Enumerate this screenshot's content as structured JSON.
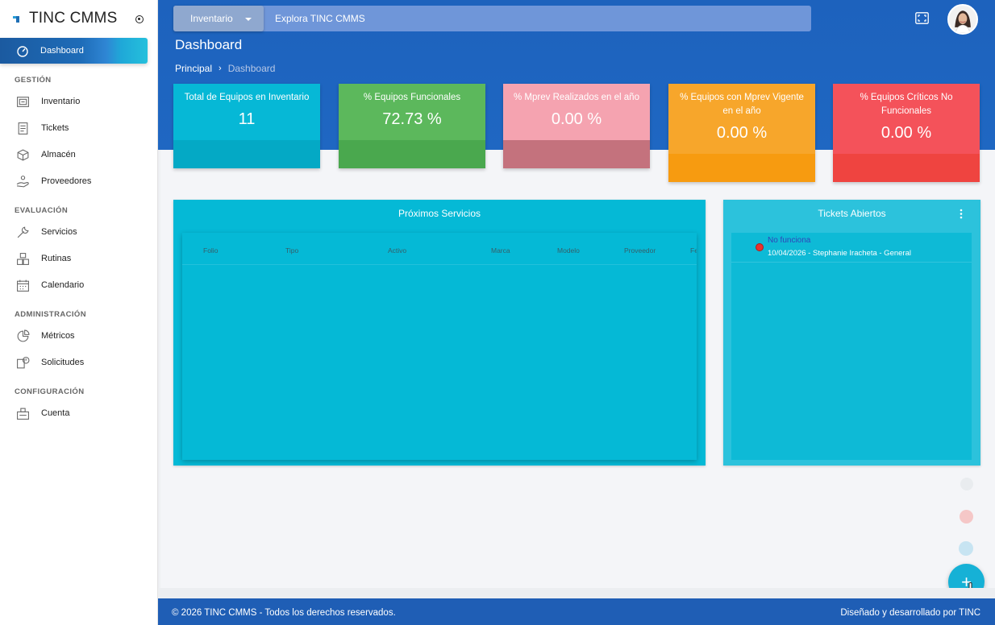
{
  "app": {
    "title": "TINC CMMS"
  },
  "sidebar": {
    "active": {
      "label": "Dashboard"
    },
    "sections": [
      {
        "label": "GESTIÓN",
        "items": [
          {
            "label": "Inventario",
            "icon": "inventory-icon"
          },
          {
            "label": "Tickets",
            "icon": "tickets-icon"
          },
          {
            "label": "Almacén",
            "icon": "box-icon"
          },
          {
            "label": "Proveedores",
            "icon": "supplier-icon"
          }
        ]
      },
      {
        "label": "EVALUACIÓN",
        "items": [
          {
            "label": "Servicios",
            "icon": "wrench-icon"
          },
          {
            "label": "Rutinas",
            "icon": "boxes-icon"
          },
          {
            "label": "Calendario",
            "icon": "calendar-icon"
          }
        ]
      },
      {
        "label": "ADMINISTRACIÓN",
        "items": [
          {
            "label": "Métricos",
            "icon": "pie-chart-icon"
          },
          {
            "label": "Solicitudes",
            "icon": "request-icon"
          }
        ]
      },
      {
        "label": "CONFIGURACIÓN",
        "items": [
          {
            "label": "Cuenta",
            "icon": "account-icon"
          }
        ]
      }
    ]
  },
  "header": {
    "search_select": "Inventario",
    "search_placeholder": "Explora TINC CMMS"
  },
  "page": {
    "title": "Dashboard",
    "breadcrumb": {
      "root": "Principal",
      "current": "Dashboard"
    }
  },
  "cards": [
    {
      "label": "Total de Equipos en Inventario",
      "value": "11",
      "color_top": "#06b8d6",
      "color_bottom": "#04a9c5"
    },
    {
      "label": "% Equipos Funcionales",
      "value": "72.73 %",
      "color_top": "#5cb85c",
      "color_bottom": "#4aa84e"
    },
    {
      "label": "% Mprev Realizados en el año",
      "value": "0.00 %",
      "color_top": "#f5a3b0",
      "color_bottom": "#c4727d"
    },
    {
      "label": "% Equipos con Mprev Vigente en el año",
      "value": "0.00 %",
      "color_top": "#f7a62b",
      "color_bottom": "#f79b10"
    },
    {
      "label": "% Equipos Críticos No Funcionales",
      "value": "0.00 %",
      "color_top": "#f4525a",
      "color_bottom": "#ef4440"
    }
  ],
  "services": {
    "title": "Próximos Servicios",
    "columns": [
      "Folio",
      "Tipo",
      "Activo",
      "Marca",
      "Modelo",
      "Proveedor",
      "Fe"
    ]
  },
  "tickets": {
    "title": "Tickets Abiertos",
    "items": [
      {
        "title": "No funciona",
        "meta": "10/04/2026 - Stephanie Iracheta - General",
        "status_color": "#e9322e"
      }
    ]
  },
  "footer": {
    "left": "© 2026 TINC CMMS - Todos los derechos reservados.",
    "right": "Diseñado y desarrollado por TINC"
  }
}
